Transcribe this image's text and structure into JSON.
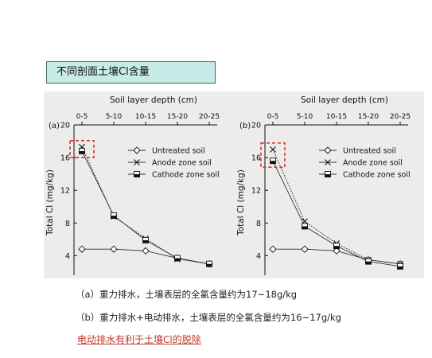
{
  "title": "不同剖面土壤Cl含量",
  "captions": {
    "a": "（a）重力排水，土壤表层的全氯含量约为17~18g/kg",
    "b": "（b）重力排水+电动排水，土壤表层的全氯含量约为16~17g/kg",
    "conclusion": "电动排水有利于土壤Cl的脱除"
  },
  "chart_data": [
    {
      "type": "line",
      "panel_label": "(a)",
      "top_axis_label": "Soil layer depth (cm)",
      "ylabel": "Total Cl (mg/kg)",
      "categories": [
        "0-5",
        "5-10",
        "10-15",
        "15-20",
        "20-25"
      ],
      "yticks": [
        4,
        8,
        12,
        16,
        20
      ],
      "ylim": [
        2,
        20
      ],
      "legend_position": "top-right",
      "highlight": "dashed red box around 0-5 cm values",
      "series": [
        {
          "name": "Untreated soil",
          "marker": "diamond-open",
          "values": [
            4.8,
            4.8,
            4.6,
            3.7,
            3.0
          ]
        },
        {
          "name": "Anode zone soil",
          "marker": "cross",
          "values": [
            17.3,
            8.8,
            6.1,
            3.6,
            3.0
          ]
        },
        {
          "name": "Cathode zone soil",
          "marker": "square-half",
          "values": [
            16.8,
            8.9,
            5.9,
            3.7,
            3.0
          ]
        }
      ]
    },
    {
      "type": "line",
      "panel_label": "(b)",
      "top_axis_label": "Soil layer depth (cm)",
      "ylabel": "Total Cl (mg/kg)",
      "categories": [
        "0-5",
        "5-10",
        "10-15",
        "15-20",
        "20-25"
      ],
      "yticks": [
        4,
        8,
        12,
        16,
        20
      ],
      "ylim": [
        2,
        20
      ],
      "legend_position": "top-right",
      "highlight": "dashed red box around 0-5 cm values",
      "series": [
        {
          "name": "Untreated soil",
          "marker": "diamond-open",
          "values": [
            4.8,
            4.8,
            4.6,
            3.5,
            3.0
          ]
        },
        {
          "name": "Anode zone soil",
          "marker": "cross",
          "values": [
            17.0,
            8.2,
            5.5,
            3.5,
            3.0
          ]
        },
        {
          "name": "Cathode zone soil",
          "marker": "square-half",
          "values": [
            15.6,
            7.6,
            5.2,
            3.3,
            2.7
          ]
        }
      ]
    }
  ]
}
